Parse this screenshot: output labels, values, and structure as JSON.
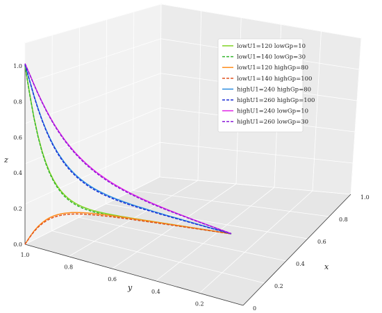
{
  "chart_data": {
    "type": "line",
    "projection": "3d",
    "xlabel": "x",
    "ylabel": "y",
    "zlabel": "z",
    "x_ticks": [
      "0",
      "0.2",
      "0.4",
      "0.6",
      "0.8",
      "1.0"
    ],
    "y_ticks": [
      "1.0",
      "0.8",
      "0.6",
      "0.4",
      "0.2"
    ],
    "z_ticks": [
      "0.0",
      "0.2",
      "0.4",
      "0.6",
      "0.8",
      "1.0"
    ],
    "xlim": [
      0,
      1
    ],
    "ylim": [
      0,
      1
    ],
    "zlim": [
      0,
      1
    ],
    "grid": true,
    "legend_position": "upper-right",
    "series": [
      {
        "name": "lowU1=120 lowGp=10",
        "color": "#7ed321",
        "dash": "solid",
        "z0": 1.0,
        "z_mid": 0.22,
        "z_end": 0.0
      },
      {
        "name": "lowU1=140 lowGp=30",
        "color": "#33b52c",
        "dash": "dashed",
        "z0": 1.0,
        "z_mid": 0.21,
        "z_end": 0.0
      },
      {
        "name": "lowU1=120 highGp=80",
        "color": "#ff8c1a",
        "dash": "solid",
        "z0": 0.0,
        "z_mid": 0.2,
        "z_end": 0.0
      },
      {
        "name": "lowU1=140 highGp=100",
        "color": "#e0521f",
        "dash": "dashed",
        "z0": 0.0,
        "z_mid": 0.19,
        "z_end": 0.0
      },
      {
        "name": "highU1=240 highGp=80",
        "color": "#2a8ce0",
        "dash": "solid",
        "z0": 1.0,
        "z_mid": 0.35,
        "z_end": 0.0
      },
      {
        "name": "highU1=260 highGp=100",
        "color": "#1a2ad6",
        "dash": "dashed",
        "z0": 1.0,
        "z_mid": 0.34,
        "z_end": 0.0
      },
      {
        "name": "highU1=240 lowGp=10",
        "color": "#e020e6",
        "dash": "solid",
        "z0": 1.0,
        "z_mid": 0.42,
        "z_end": 0.0
      },
      {
        "name": "highU1=260 lowGp=30",
        "color": "#8a1ad8",
        "dash": "dashed",
        "z0": 1.0,
        "z_mid": 0.41,
        "z_end": 0.0
      }
    ]
  }
}
